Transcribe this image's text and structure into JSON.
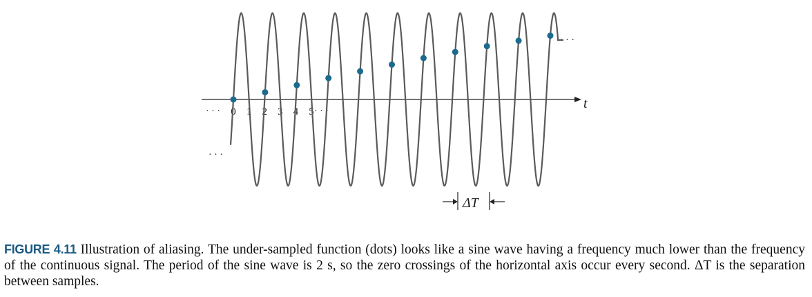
{
  "figure": {
    "axis_label": "t",
    "tick_labels": [
      "0",
      "1",
      "2",
      "3",
      "4",
      "5"
    ],
    "left_ellipsis": "· · ·",
    "right_ellipsis": "· · ·",
    "upper_right_ellipsis": "· · ·",
    "lower_left_ellipsis": "· · ·",
    "delta_label": "ΔT",
    "colors": {
      "wave": "#5a5a5a",
      "dots": "#1d6a8e",
      "axis": "#222222"
    }
  },
  "caption": {
    "label": "FIGURE 4.11",
    "text": "Illustration of aliasing. The under-sampled function (dots) looks like a sine wave having a frequency much lower than the frequency of the continuous signal. The period of the sine wave is 2 s, so the zero crossings of the horizontal axis occur every second. ΔT  is the separation between samples."
  }
}
